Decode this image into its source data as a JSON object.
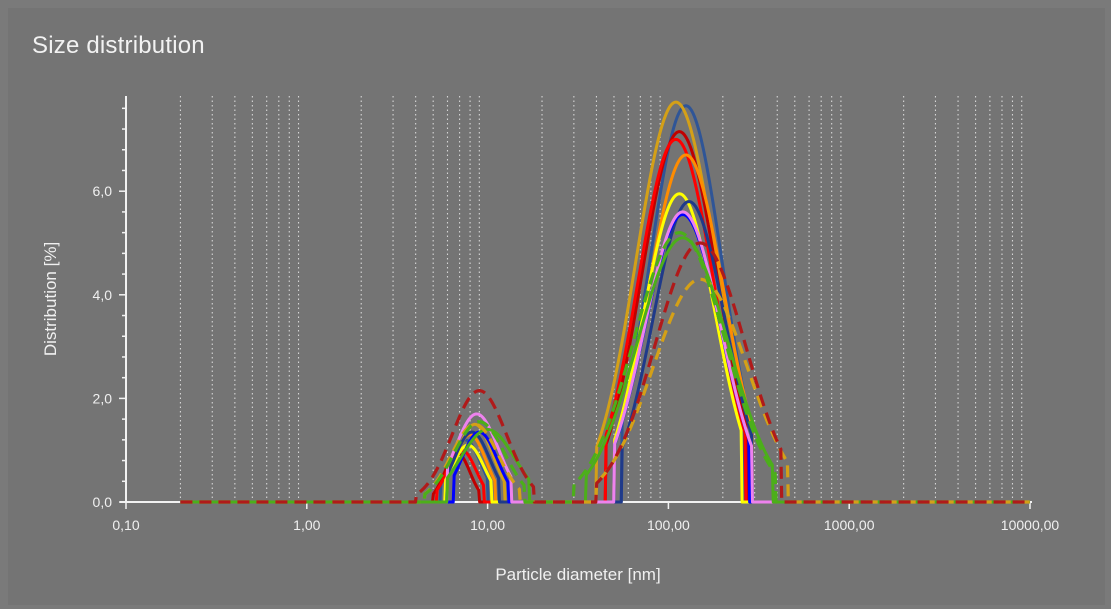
{
  "chart_data": {
    "type": "line",
    "title": "Size distribution",
    "xlabel": "Particle diameter [nm]",
    "ylabel": "Distribution [%]",
    "x_scale": "log",
    "xlim": [
      0.1,
      10000
    ],
    "ylim": [
      0,
      7.8
    ],
    "x_ticks": [
      0.1,
      1,
      10,
      100,
      1000,
      10000
    ],
    "x_tick_labels": [
      "0,10",
      "1,00",
      "10,00",
      "100,00",
      "1000,00",
      "10000,00"
    ],
    "y_ticks": [
      0,
      2,
      4,
      6
    ],
    "y_tick_labels": [
      "0,0",
      "2,0",
      "4,0",
      "6,0"
    ],
    "grid": "vertical dotted at log minor ticks",
    "background": "#747474",
    "series": [
      {
        "color": "#2f5597",
        "dashed": false,
        "peaks": [
          {
            "center": 7.5,
            "sigma": 0.09,
            "height": 1.2,
            "range": [
              5.5,
              10
            ]
          },
          {
            "center": 125,
            "sigma": 0.2,
            "height": 7.65,
            "range": [
              55,
              260
            ]
          }
        ]
      },
      {
        "color": "#d4a017",
        "dashed": false,
        "peaks": [
          {
            "center": 8.5,
            "sigma": 0.1,
            "height": 1.5,
            "range": [
              6,
              12.5
            ]
          },
          {
            "center": 110,
            "sigma": 0.22,
            "height": 7.72,
            "range": [
              40,
              270
            ]
          }
        ]
      },
      {
        "color": "#c00000",
        "dashed": false,
        "peaks": [
          {
            "center": 6.8,
            "sigma": 0.07,
            "height": 0.95,
            "range": [
              5,
              9
            ]
          },
          {
            "center": 115,
            "sigma": 0.21,
            "height": 7.15,
            "range": [
              45,
              270
            ]
          }
        ]
      },
      {
        "color": "#ff0000",
        "dashed": false,
        "peaks": [
          {
            "center": 7.2,
            "sigma": 0.08,
            "height": 1.0,
            "range": [
              5.2,
              9.5
            ]
          },
          {
            "center": 110,
            "sigma": 0.21,
            "height": 7.0,
            "range": [
              45,
              265
            ]
          }
        ]
      },
      {
        "color": "#ff8c00",
        "dashed": false,
        "peaks": [
          {
            "center": 8.0,
            "sigma": 0.09,
            "height": 1.3,
            "range": [
              6,
              11
            ]
          },
          {
            "center": 125,
            "sigma": 0.21,
            "height": 6.7,
            "range": [
              50,
              290
            ]
          }
        ]
      },
      {
        "color": "#ffff00",
        "dashed": false,
        "peaks": [
          {
            "center": 7.8,
            "sigma": 0.09,
            "height": 1.1,
            "range": [
              5.8,
              10.5
            ]
          },
          {
            "center": 115,
            "sigma": 0.2,
            "height": 5.95,
            "range": [
              50,
              255
            ]
          }
        ]
      },
      {
        "color": "#1f3a8a",
        "dashed": false,
        "peaks": [
          {
            "center": 8.2,
            "sigma": 0.1,
            "height": 1.35,
            "range": [
              6,
              11.5
            ]
          },
          {
            "center": 130,
            "sigma": 0.2,
            "height": 5.8,
            "range": [
              55,
              290
            ]
          }
        ]
      },
      {
        "color": "#0000ff",
        "dashed": false,
        "peaks": [
          {
            "center": 9.0,
            "sigma": 0.1,
            "height": 1.35,
            "range": [
              6.5,
              13
            ]
          },
          {
            "center": 120,
            "sigma": 0.21,
            "height": 5.55,
            "range": [
              50,
              280
            ]
          }
        ]
      },
      {
        "color": "#ee82ee",
        "dashed": false,
        "peaks": [
          {
            "center": 8.7,
            "sigma": 0.12,
            "height": 1.7,
            "range": [
              6,
              13.5
            ]
          },
          {
            "center": 120,
            "sigma": 0.21,
            "height": 5.6,
            "range": [
              50,
              290
            ]
          }
        ]
      },
      {
        "color": "#4caf1a",
        "dashed": false,
        "peaks": [
          {
            "center": 10.0,
            "sigma": 0.15,
            "height": 1.4,
            "range": [
              6,
              17
            ]
          },
          {
            "center": 120,
            "sigma": 0.25,
            "height": 5.1,
            "range": [
              35,
              380
            ]
          }
        ]
      },
      {
        "color": "#d4a017",
        "dashed": true,
        "peaks": [
          {
            "center": 8.5,
            "sigma": 0.13,
            "height": 1.5,
            "range": [
              4.5,
              15
            ]
          },
          {
            "center": 150,
            "sigma": 0.26,
            "height": 4.3,
            "range": [
              40,
              460
            ]
          }
        ]
      },
      {
        "color": "#4caf1a",
        "dashed": true,
        "peaks": [
          {
            "center": 9.0,
            "sigma": 0.14,
            "height": 1.55,
            "range": [
              4.5,
              16
            ]
          },
          {
            "center": 115,
            "sigma": 0.25,
            "height": 5.2,
            "range": [
              30,
              390
            ]
          }
        ]
      },
      {
        "color": "#b01a1a",
        "dashed": true,
        "peaks": [
          {
            "center": 9.0,
            "sigma": 0.15,
            "height": 2.15,
            "range": [
              4,
              18
            ]
          },
          {
            "center": 150,
            "sigma": 0.25,
            "height": 5.0,
            "range": [
              40,
              420
            ]
          }
        ]
      }
    ]
  }
}
